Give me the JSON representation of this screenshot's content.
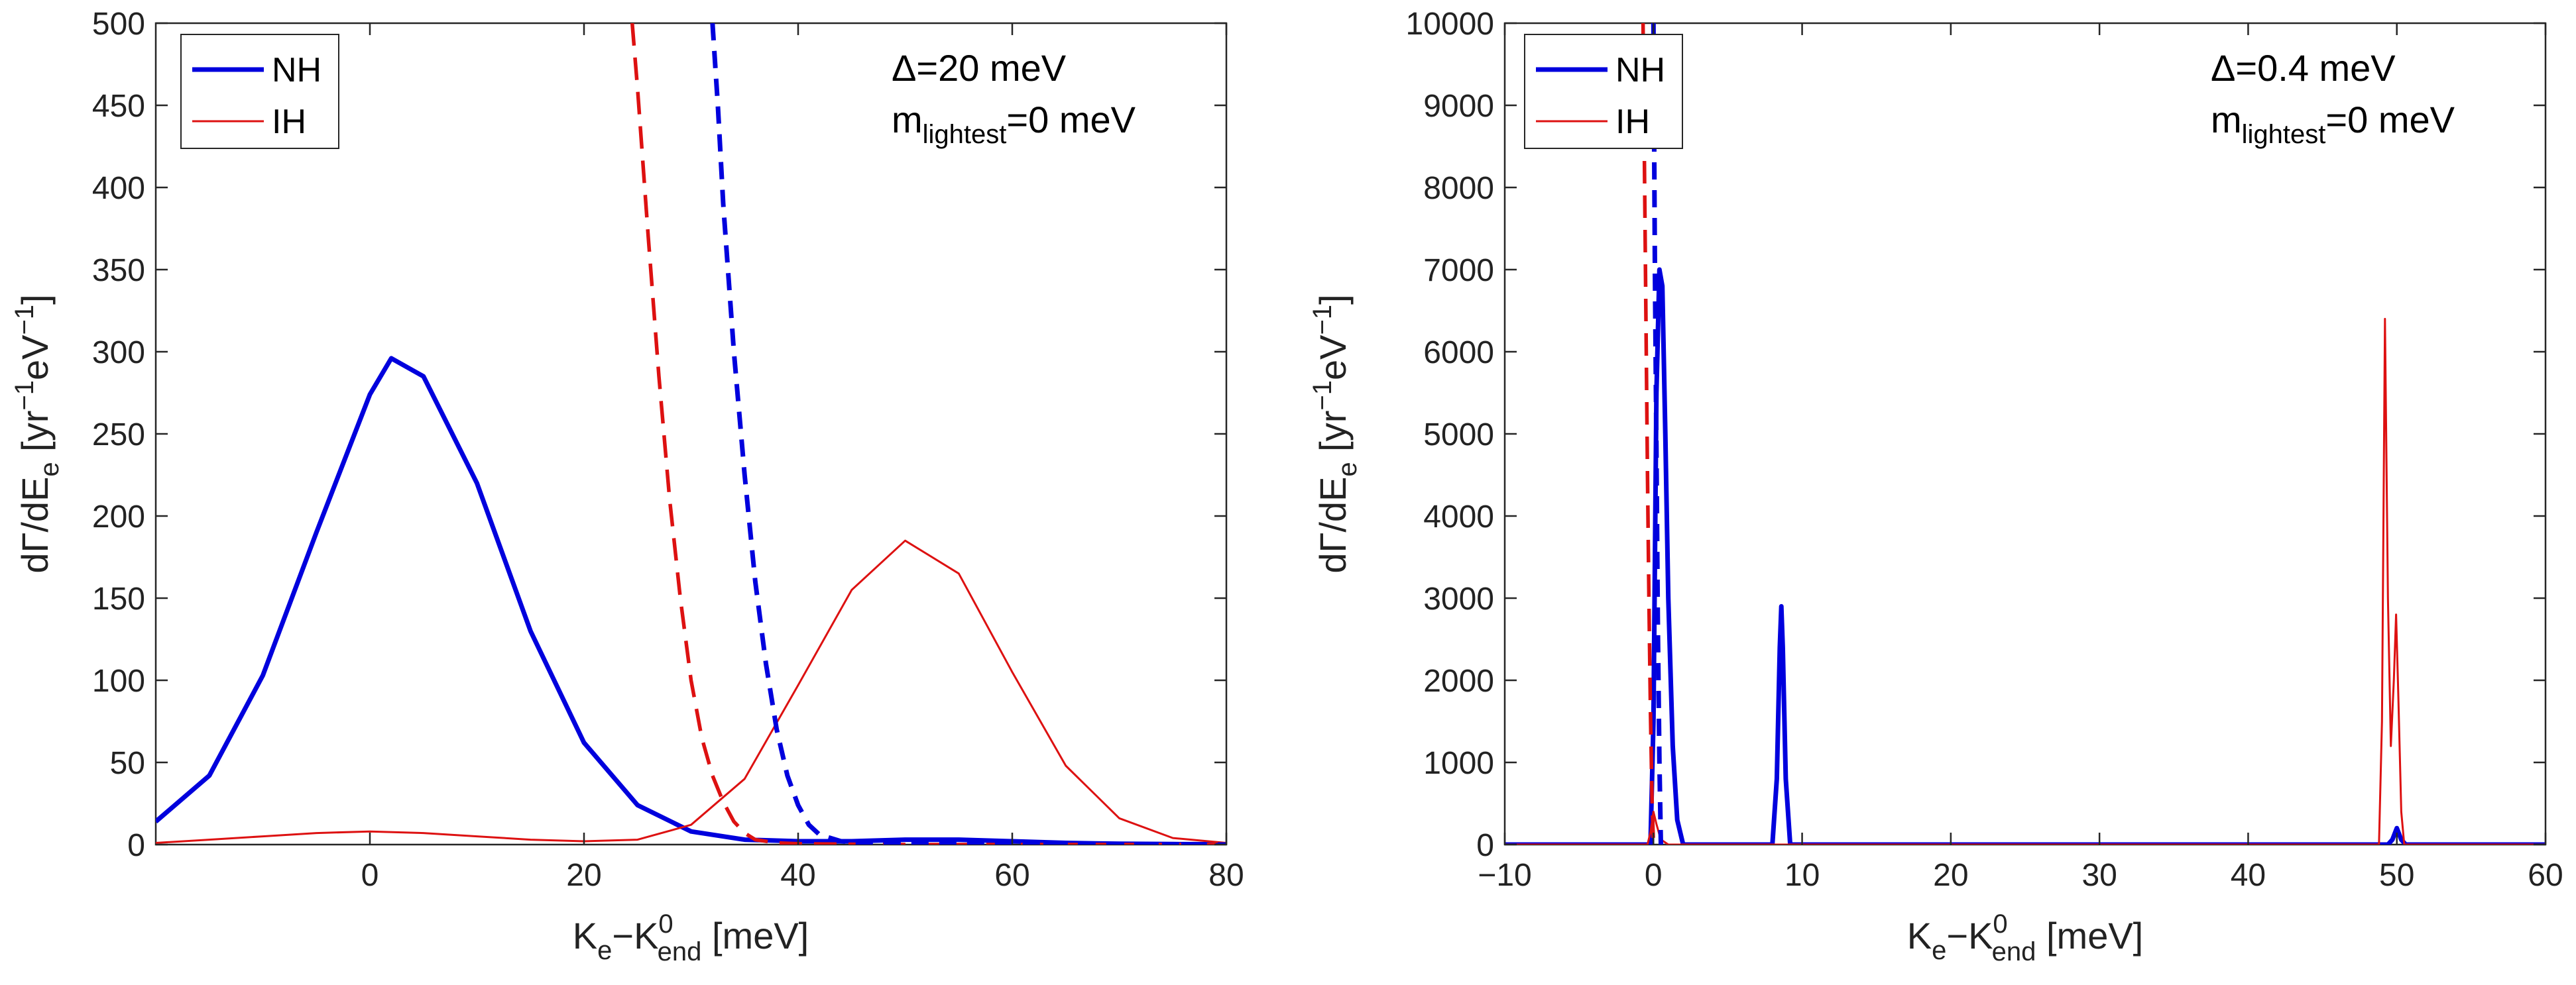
{
  "chart_data": [
    {
      "type": "line",
      "xlim": [
        -20,
        80
      ],
      "ylim": [
        0,
        500
      ],
      "xticks": [
        0,
        20,
        40,
        60,
        80
      ],
      "xtick_labels": [
        "0",
        "20",
        "40",
        "60",
        "80"
      ],
      "yticks": [
        0,
        50,
        100,
        150,
        200,
        250,
        300,
        350,
        400,
        450,
        500
      ],
      "ytick_labels": [
        "0",
        "50",
        "100",
        "150",
        "200",
        "250",
        "300",
        "350",
        "400",
        "450",
        "500"
      ],
      "xlabel": {
        "main": "K",
        "sub1": "e",
        "mid": "−K",
        "sup": "0",
        "sub2": "end",
        "tail": " [meV]"
      },
      "ylabel": {
        "pre": "dΓ/dE",
        "sub": "e",
        "mid": " [yr",
        "sup1": "−1",
        "mid2": "eV",
        "sup2": "−1",
        "tail": "]"
      },
      "annotation": {
        "line1": "Δ=20 meV",
        "m": "m",
        "msub": "lightest",
        "mtail": "=0 meV"
      },
      "legend": {
        "position": "top-left",
        "entries": [
          "NH",
          "IH"
        ]
      },
      "colors": {
        "NH": "#0000dd",
        "IH": "#dd1111"
      },
      "series": [
        {
          "name": "NH",
          "style": "solid-thick",
          "color": "#0000dd",
          "x": [
            -20,
            -15,
            -10,
            -5,
            0,
            2,
            5,
            10,
            15,
            20,
            25,
            30,
            35,
            40,
            45,
            50,
            55,
            60,
            65,
            70,
            75,
            80
          ],
          "y": [
            14,
            42,
            103,
            190,
            274,
            296,
            285,
            220,
            130,
            62,
            24,
            8,
            3,
            2,
            2,
            3,
            3,
            2,
            1,
            0.5,
            0.3,
            0.2
          ]
        },
        {
          "name": "IH",
          "style": "solid-thin",
          "color": "#dd1111",
          "x": [
            -20,
            -15,
            -10,
            -5,
            0,
            5,
            10,
            15,
            20,
            25,
            30,
            35,
            40,
            45,
            50,
            55,
            60,
            65,
            70,
            75,
            80
          ],
          "y": [
            1,
            3,
            5,
            7,
            8,
            7,
            5,
            3,
            2,
            3,
            12,
            40,
            97,
            155,
            185,
            165,
            105,
            48,
            16,
            4,
            1
          ]
        },
        {
          "name": "IH-dashed",
          "style": "dashed",
          "color": "#dd1111",
          "x": [
            24.5,
            25,
            26,
            27,
            28,
            29,
            30,
            31,
            32,
            33,
            34,
            35,
            36,
            38,
            40,
            45,
            50,
            60,
            80
          ],
          "y": [
            500,
            460,
            370,
            285,
            210,
            150,
            100,
            65,
            42,
            26,
            14,
            7,
            3,
            1,
            0.5,
            0.2,
            0,
            0,
            0
          ]
        },
        {
          "name": "NH-dashed",
          "style": "dashed-thick",
          "color": "#0000dd",
          "x": [
            32,
            32.5,
            33,
            34,
            35,
            36,
            37,
            38,
            39,
            40,
            41,
            42,
            44,
            46,
            50,
            60,
            80
          ],
          "y": [
            500,
            450,
            390,
            300,
            225,
            160,
            110,
            70,
            42,
            24,
            12,
            6,
            2,
            1,
            0.5,
            0.2,
            0
          ]
        }
      ]
    },
    {
      "type": "line",
      "xlim": [
        -10,
        60
      ],
      "ylim": [
        0,
        10000
      ],
      "xticks": [
        -10,
        0,
        10,
        20,
        30,
        40,
        50,
        60
      ],
      "xtick_labels": [
        "−10",
        "0",
        "10",
        "20",
        "30",
        "40",
        "50",
        "60"
      ],
      "yticks": [
        0,
        1000,
        2000,
        3000,
        4000,
        5000,
        6000,
        7000,
        8000,
        9000,
        10000
      ],
      "ytick_labels": [
        "0",
        "1000",
        "2000",
        "3000",
        "4000",
        "5000",
        "6000",
        "7000",
        "8000",
        "9000",
        "10000"
      ],
      "xlabel": {
        "main": "K",
        "sub1": "e",
        "mid": "−K",
        "sup": "0",
        "sub2": "end",
        "tail": " [meV]"
      },
      "ylabel": {
        "pre": "dΓ/dE",
        "sub": "e",
        "mid": " [yr",
        "sup1": "−1",
        "mid2": "eV",
        "sup2": "−1",
        "tail": "]"
      },
      "annotation": {
        "line1": "Δ=0.4 meV",
        "m": "m",
        "msub": "lightest",
        "mtail": "=0 meV"
      },
      "legend": {
        "position": "top-left",
        "entries": [
          "NH",
          "IH"
        ]
      },
      "colors": {
        "NH": "#0000dd",
        "IH": "#dd1111"
      },
      "series": [
        {
          "name": "NH",
          "style": "solid-thick",
          "color": "#0000dd",
          "x": [
            -10,
            -0.2,
            0,
            0.2,
            0.4,
            0.6,
            0.8,
            1.0,
            1.3,
            1.6,
            2.0,
            8.0,
            8.3,
            8.5,
            8.6,
            8.7,
            8.9,
            9.2,
            49.4,
            49.7,
            50.0,
            50.3,
            50.6,
            60
          ],
          "y": [
            0,
            0,
            1500,
            5500,
            7000,
            6800,
            5000,
            3000,
            1200,
            300,
            0,
            0,
            800,
            2400,
            2900,
            2400,
            800,
            0,
            0,
            60,
            200,
            60,
            0,
            0
          ]
        },
        {
          "name": "IH",
          "style": "solid-thin",
          "color": "#dd1111",
          "x": [
            -10,
            -0.4,
            -0.2,
            0,
            0.2,
            0.4,
            0.6,
            1.0,
            48.8,
            49.0,
            49.2,
            49.4,
            49.6,
            49.8,
            49.95,
            50.1,
            50.3,
            50.5,
            60
          ],
          "y": [
            0,
            0,
            150,
            400,
            250,
            120,
            50,
            0,
            0,
            1500,
            6400,
            3000,
            1200,
            2000,
            2800,
            1800,
            400,
            0,
            0
          ]
        },
        {
          "name": "IH-dashed",
          "style": "dashed",
          "color": "#dd1111",
          "x": [
            -0.7,
            -0.6,
            -0.5,
            -0.4,
            -0.3,
            -0.2,
            -0.1,
            0
          ],
          "y": [
            10000,
            8200,
            6300,
            4500,
            2900,
            1600,
            600,
            0
          ]
        },
        {
          "name": "NH-dashed",
          "style": "dashed-thick",
          "color": "#0000dd",
          "x": [
            0,
            0.05,
            0.1,
            0.2,
            0.3,
            0.4,
            0.5
          ],
          "y": [
            10000,
            8500,
            7000,
            4800,
            2600,
            1000,
            0
          ]
        }
      ]
    }
  ]
}
